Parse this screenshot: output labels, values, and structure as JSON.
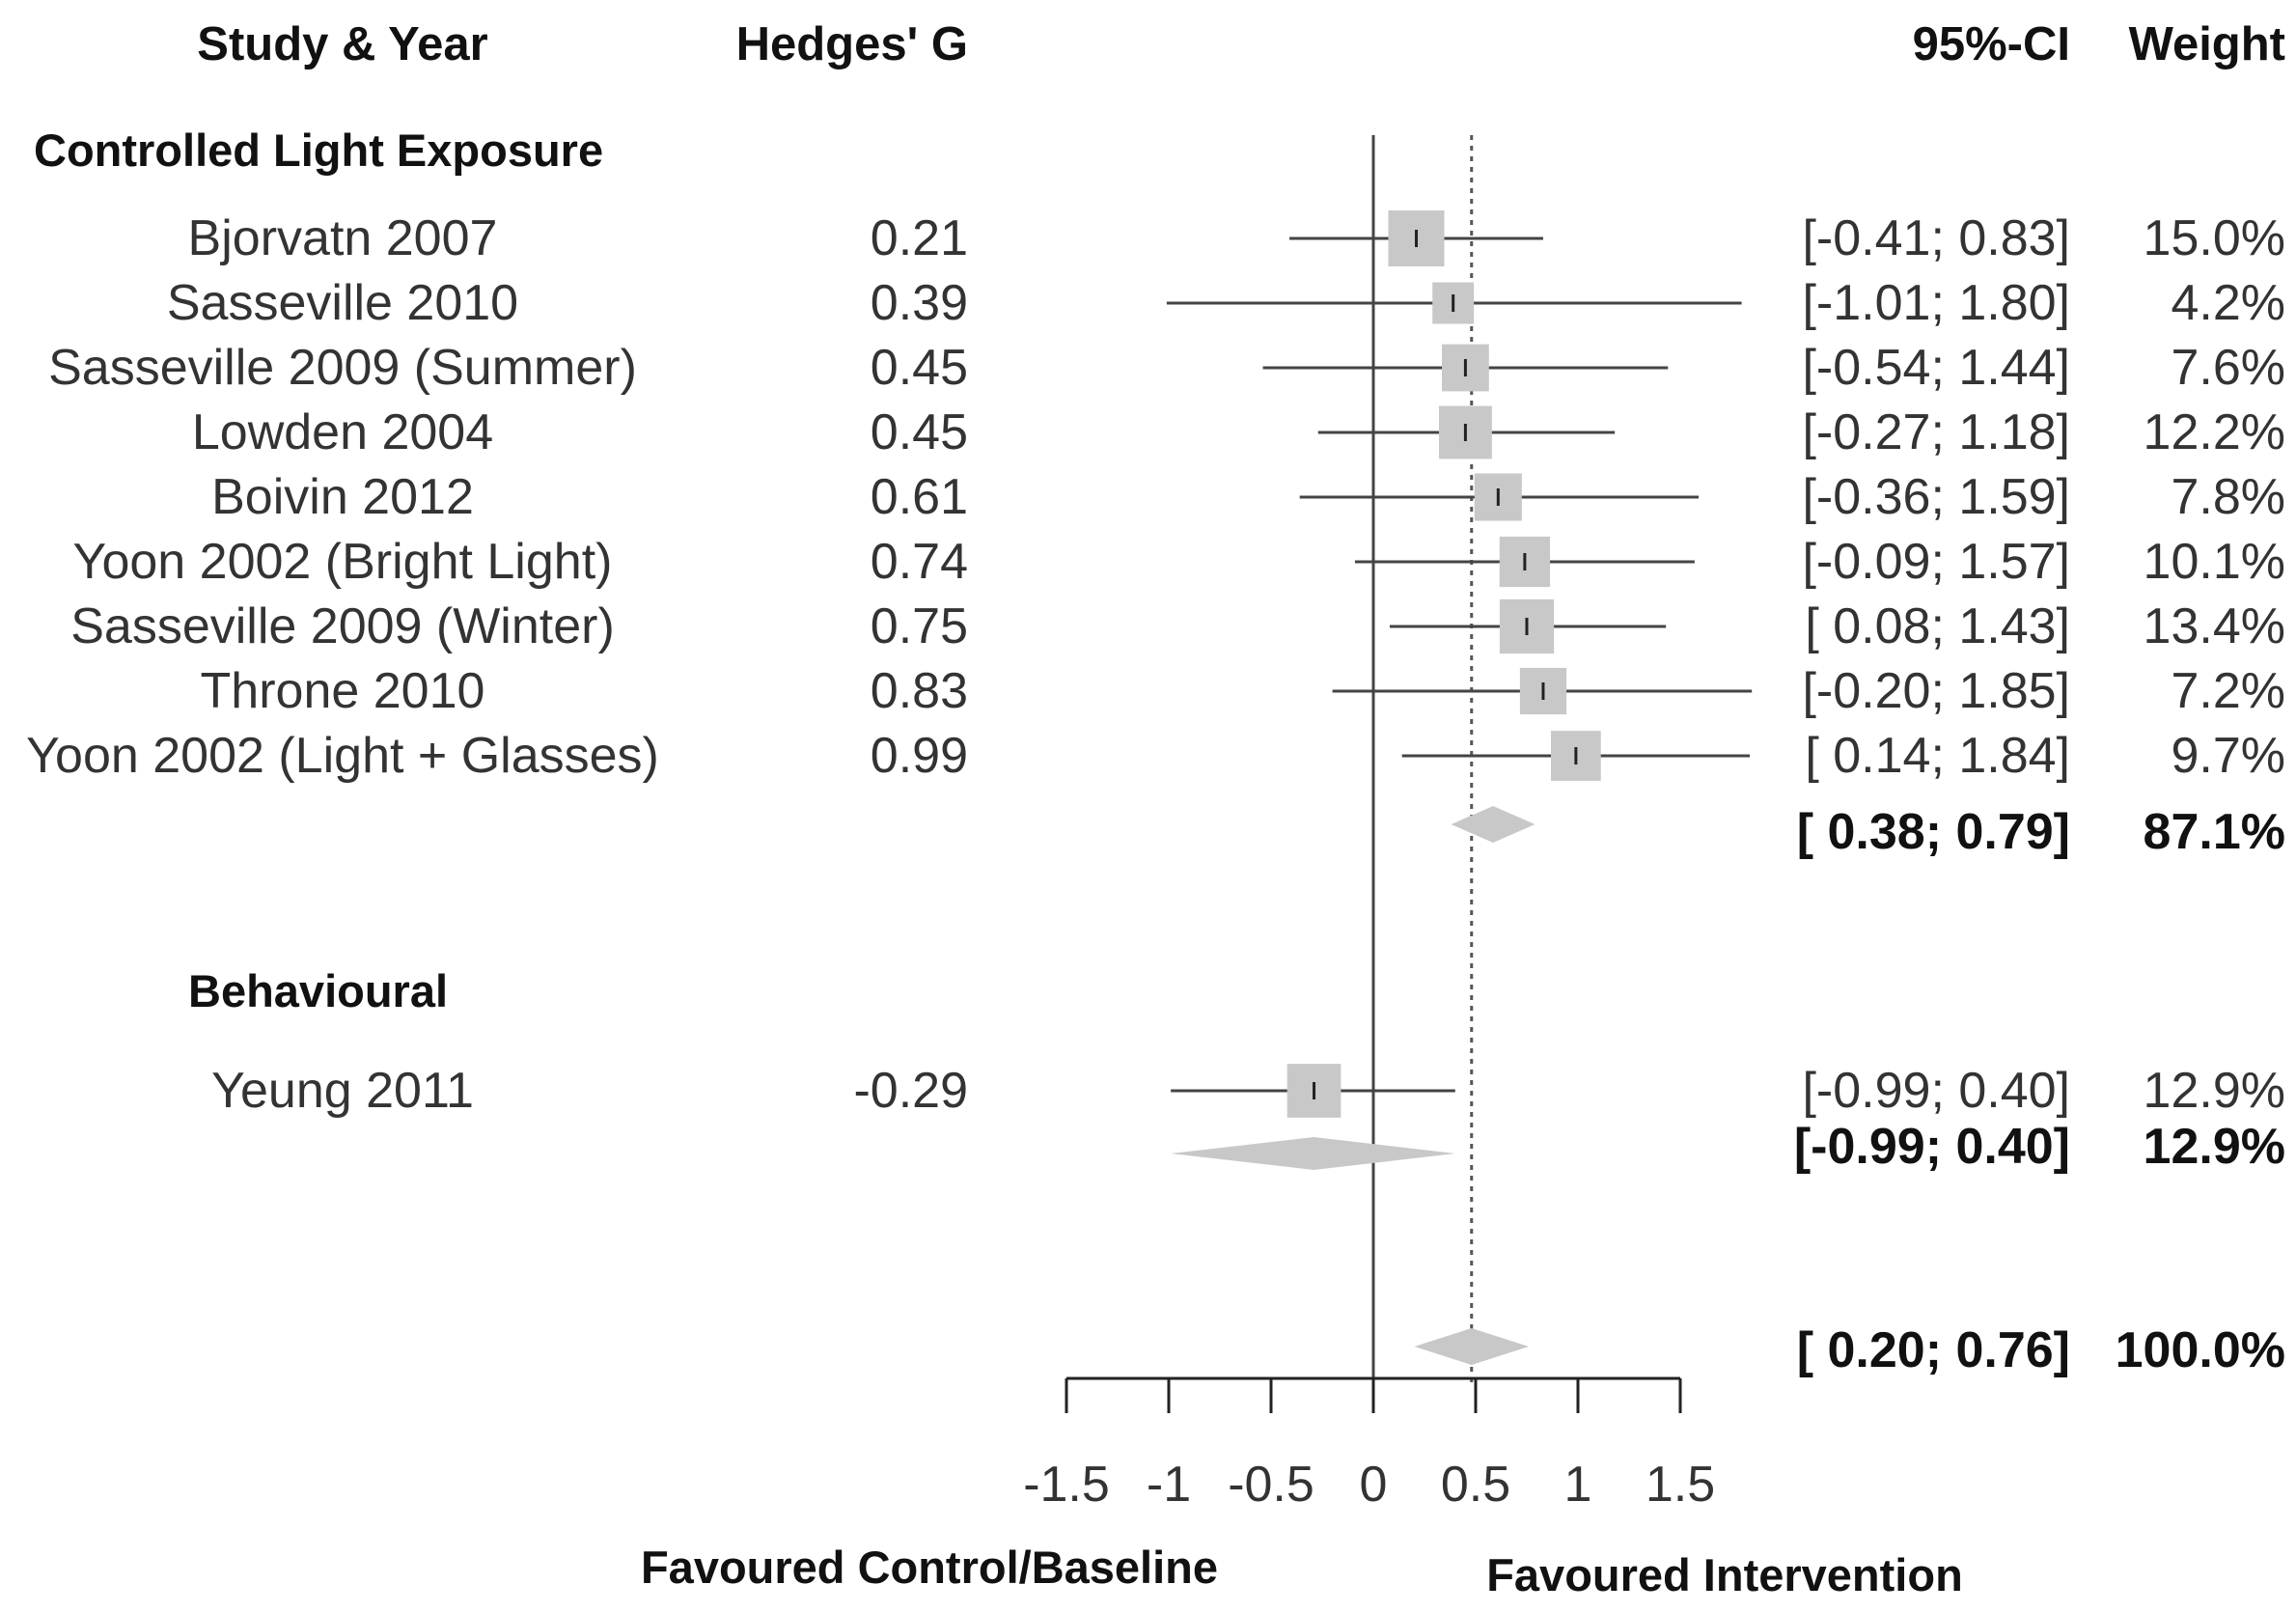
{
  "chart_data": {
    "type": "forest",
    "headers": {
      "study": "Study & Year",
      "effect": "Hedges' G",
      "ci": "95%-CI",
      "weight": "Weight"
    },
    "groups": [
      {
        "name": "Controlled Light Exposure",
        "studies": [
          {
            "study": "Bjorvatn 2007",
            "g": 0.21,
            "g_label": "0.21",
            "lower": -0.41,
            "upper": 0.83,
            "ci_label": "[-0.41; 0.83]",
            "weight": 15.0,
            "weight_label": "15.0%"
          },
          {
            "study": "Sasseville 2010",
            "g": 0.39,
            "g_label": "0.39",
            "lower": -1.01,
            "upper": 1.8,
            "ci_label": "[-1.01; 1.80]",
            "weight": 4.2,
            "weight_label": "4.2%"
          },
          {
            "study": "Sasseville 2009 (Summer)",
            "g": 0.45,
            "g_label": "0.45",
            "lower": -0.54,
            "upper": 1.44,
            "ci_label": "[-0.54; 1.44]",
            "weight": 7.6,
            "weight_label": "7.6%"
          },
          {
            "study": "Lowden 2004",
            "g": 0.45,
            "g_label": "0.45",
            "lower": -0.27,
            "upper": 1.18,
            "ci_label": "[-0.27; 1.18]",
            "weight": 12.2,
            "weight_label": "12.2%"
          },
          {
            "study": "Boivin 2012",
            "g": 0.61,
            "g_label": "0.61",
            "lower": -0.36,
            "upper": 1.59,
            "ci_label": "[-0.36; 1.59]",
            "weight": 7.8,
            "weight_label": "7.8%"
          },
          {
            "study": "Yoon 2002 (Bright Light)",
            "g": 0.74,
            "g_label": "0.74",
            "lower": -0.09,
            "upper": 1.57,
            "ci_label": "[-0.09; 1.57]",
            "weight": 10.1,
            "weight_label": "10.1%"
          },
          {
            "study": "Sasseville 2009 (Winter)",
            "g": 0.75,
            "g_label": "0.75",
            "lower": 0.08,
            "upper": 1.43,
            "ci_label": "[ 0.08; 1.43]",
            "weight": 13.4,
            "weight_label": "13.4%"
          },
          {
            "study": "Throne 2010",
            "g": 0.83,
            "g_label": "0.83",
            "lower": -0.2,
            "upper": 1.85,
            "ci_label": "[-0.20; 1.85]",
            "weight": 7.2,
            "weight_label": "7.2%"
          },
          {
            "study": "Yoon 2002 (Light + Glasses)",
            "g": 0.99,
            "g_label": "0.99",
            "lower": 0.14,
            "upper": 1.84,
            "ci_label": "[ 0.14; 1.84]",
            "weight": 9.7,
            "weight_label": "9.7%"
          }
        ],
        "summary": {
          "lower": 0.38,
          "upper": 0.79,
          "ci_label": "[ 0.38; 0.79]",
          "weight_label": "87.1%"
        }
      },
      {
        "name": "Behavioural",
        "studies": [
          {
            "study": "Yeung 2011",
            "g": -0.29,
            "g_label": "-0.29",
            "lower": -0.99,
            "upper": 0.4,
            "ci_label": "[-0.99; 0.40]",
            "weight": 12.9,
            "weight_label": "12.9%"
          }
        ],
        "summary": {
          "lower": -0.99,
          "upper": 0.4,
          "ci_label": "[-0.99; 0.40]",
          "weight_label": "12.9%"
        }
      }
    ],
    "overall": {
      "estimate": 0.48,
      "lower": 0.2,
      "upper": 0.76,
      "ci_label": "[ 0.20; 0.76]",
      "weight_label": "100.0%"
    },
    "x_axis": {
      "ticks": [
        -1.5,
        -1,
        -0.5,
        0,
        0.5,
        1,
        1.5
      ],
      "tick_labels": [
        "-1.5",
        "-1",
        "-0.5",
        "0",
        "0.5",
        "1",
        "1.5"
      ],
      "range": [
        -1.5,
        1.5
      ]
    },
    "favours_left": "Favoured Control/Baseline",
    "favours_right": "Favoured Intervention",
    "colors": {
      "box": "#c8c8c8",
      "line": "#444444",
      "diamond": "#c8c8c8",
      "text": "#333333"
    }
  }
}
